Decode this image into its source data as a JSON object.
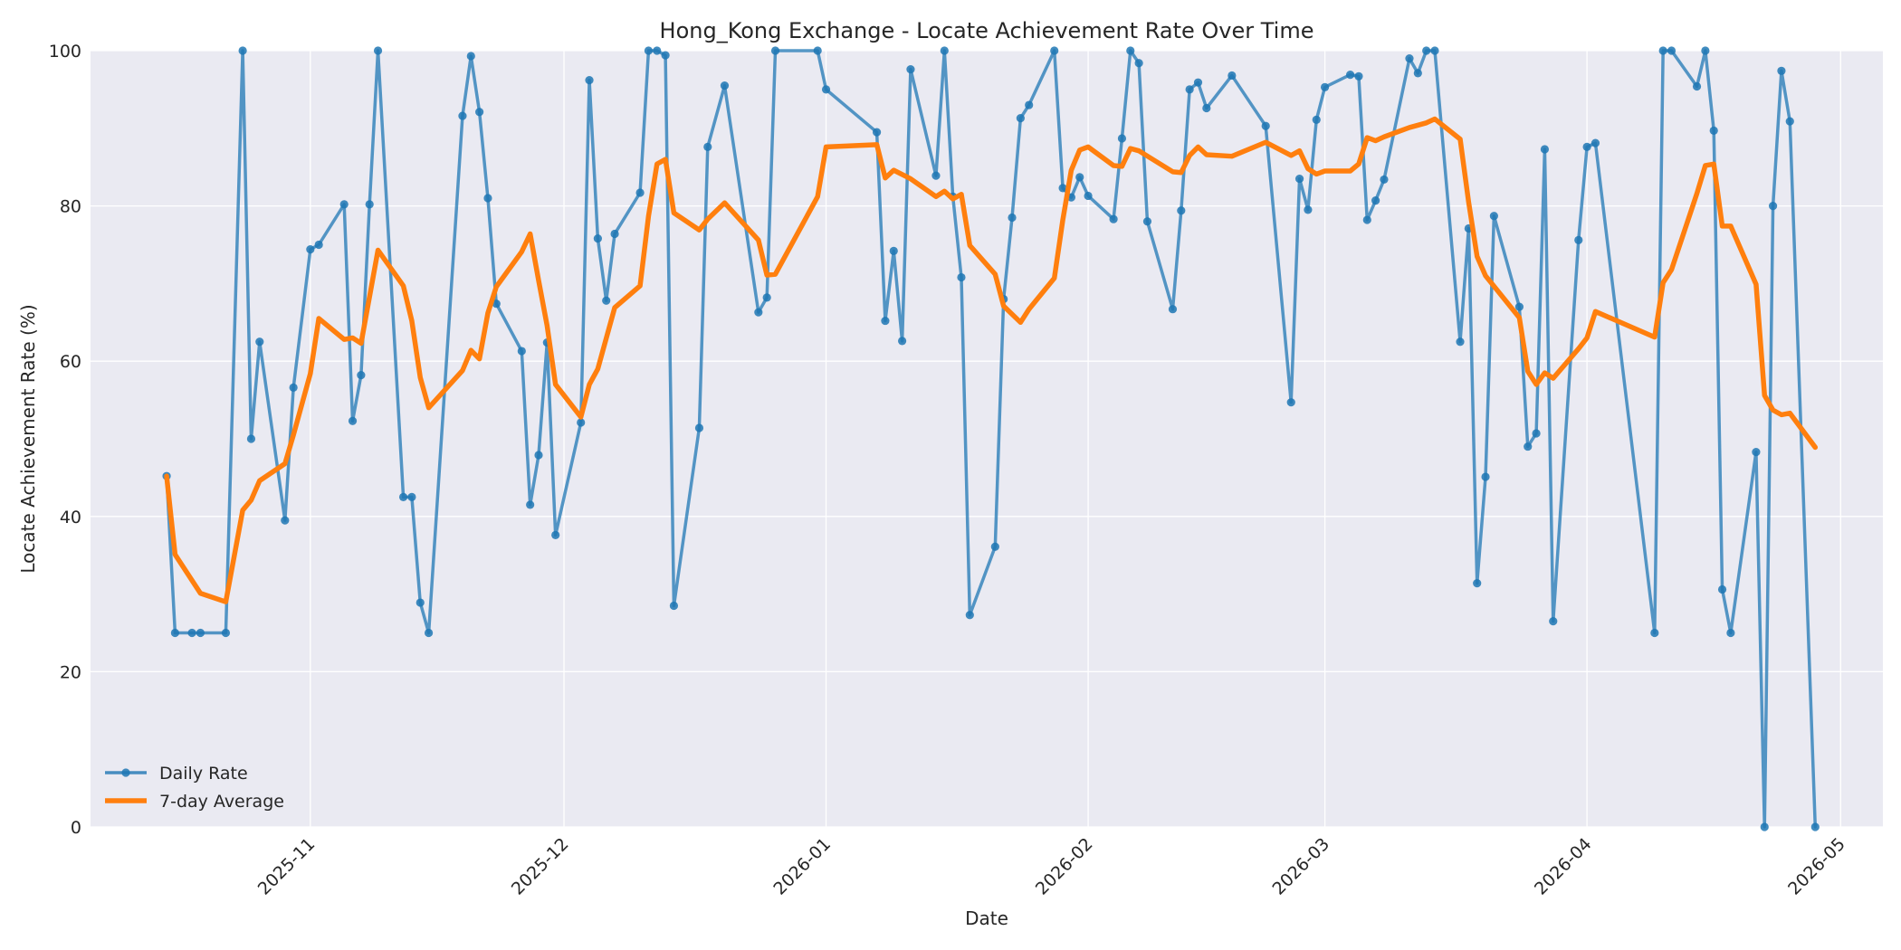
{
  "chart_data": {
    "type": "line",
    "title": "Hong_Kong Exchange - Locate Achievement Rate Over Time",
    "xlabel": "Date",
    "ylabel": "Locate Achievement Rate (%)",
    "ylim": [
      0,
      100
    ],
    "xlim": [
      "2025-10-06",
      "2026-05-06"
    ],
    "yticks": [
      0,
      20,
      40,
      60,
      80,
      100
    ],
    "xticks": [
      {
        "date": "2025-11-01",
        "label": "2025-11"
      },
      {
        "date": "2025-12-01",
        "label": "2025-12"
      },
      {
        "date": "2026-01-01",
        "label": "2026-01"
      },
      {
        "date": "2026-02-01",
        "label": "2026-02"
      },
      {
        "date": "2026-03-01",
        "label": "2026-03"
      },
      {
        "date": "2026-04-01",
        "label": "2026-04"
      },
      {
        "date": "2026-05-01",
        "label": "2026-05"
      }
    ],
    "grid": true,
    "legend_position": "lower-left",
    "colors": {
      "plot_bg": "#eaeaf2",
      "grid": "#ffffff",
      "daily": "#1f77b4",
      "avg": "#ff7f0e"
    },
    "series": [
      {
        "name": "Daily Rate",
        "marker": "circle",
        "points": [
          [
            "2025-10-15",
            45.2
          ],
          [
            "2025-10-16",
            25.0
          ],
          [
            "2025-10-18",
            25.0
          ],
          [
            "2025-10-19",
            25.0
          ],
          [
            "2025-10-22",
            25.0
          ],
          [
            "2025-10-24",
            100.0
          ],
          [
            "2025-10-25",
            50.0
          ],
          [
            "2025-10-26",
            62.5
          ],
          [
            "2025-10-29",
            39.5
          ],
          [
            "2025-10-30",
            56.6
          ],
          [
            "2025-11-01",
            74.4
          ],
          [
            "2025-11-02",
            75.0
          ],
          [
            "2025-11-05",
            80.2
          ],
          [
            "2025-11-06",
            52.3
          ],
          [
            "2025-11-07",
            58.2
          ],
          [
            "2025-11-08",
            80.2
          ],
          [
            "2025-11-09",
            100.0
          ],
          [
            "2025-11-12",
            42.5
          ],
          [
            "2025-11-13",
            42.5
          ],
          [
            "2025-11-14",
            28.9
          ],
          [
            "2025-11-15",
            25.0
          ],
          [
            "2025-11-19",
            91.6
          ],
          [
            "2025-11-20",
            99.3
          ],
          [
            "2025-11-21",
            92.1
          ],
          [
            "2025-11-22",
            81.0
          ],
          [
            "2025-11-23",
            67.4
          ],
          [
            "2025-11-26",
            61.3
          ],
          [
            "2025-11-27",
            41.5
          ],
          [
            "2025-11-28",
            47.9
          ],
          [
            "2025-11-29",
            62.4
          ],
          [
            "2025-11-30",
            37.6
          ],
          [
            "2025-12-03",
            52.1
          ],
          [
            "2025-12-04",
            96.2
          ],
          [
            "2025-12-05",
            75.8
          ],
          [
            "2025-12-06",
            67.8
          ],
          [
            "2025-12-07",
            76.4
          ],
          [
            "2025-12-10",
            81.7
          ],
          [
            "2025-12-11",
            100.0
          ],
          [
            "2025-12-12",
            100.0
          ],
          [
            "2025-12-13",
            99.4
          ],
          [
            "2025-12-14",
            28.5
          ],
          [
            "2025-12-17",
            51.4
          ],
          [
            "2025-12-18",
            87.6
          ],
          [
            "2025-12-20",
            95.5
          ],
          [
            "2025-12-24",
            66.3
          ],
          [
            "2025-12-25",
            68.2
          ],
          [
            "2025-12-26",
            100.0
          ],
          [
            "2025-12-31",
            100.0
          ],
          [
            "2026-01-01",
            95.0
          ],
          [
            "2026-01-07",
            89.5
          ],
          [
            "2026-01-08",
            65.2
          ],
          [
            "2026-01-09",
            74.2
          ],
          [
            "2026-01-10",
            62.6
          ],
          [
            "2026-01-11",
            97.6
          ],
          [
            "2026-01-14",
            83.9
          ],
          [
            "2026-01-15",
            100.0
          ],
          [
            "2026-01-16",
            81.2
          ],
          [
            "2026-01-17",
            70.8
          ],
          [
            "2026-01-18",
            27.3
          ],
          [
            "2026-01-21",
            36.1
          ],
          [
            "2026-01-22",
            68.0
          ],
          [
            "2026-01-23",
            78.5
          ],
          [
            "2026-01-24",
            91.3
          ],
          [
            "2026-01-25",
            93.0
          ],
          [
            "2026-01-28",
            100.0
          ],
          [
            "2026-01-29",
            82.3
          ],
          [
            "2026-01-30",
            81.1
          ],
          [
            "2026-01-31",
            83.7
          ],
          [
            "2026-02-01",
            81.3
          ],
          [
            "2026-02-04",
            78.3
          ],
          [
            "2026-02-05",
            88.7
          ],
          [
            "2026-02-06",
            100.0
          ],
          [
            "2026-02-07",
            98.4
          ],
          [
            "2026-02-08",
            78.0
          ],
          [
            "2026-02-11",
            66.7
          ],
          [
            "2026-02-12",
            79.4
          ],
          [
            "2026-02-13",
            95.0
          ],
          [
            "2026-02-14",
            95.9
          ],
          [
            "2026-02-15",
            92.6
          ],
          [
            "2026-02-18",
            96.8
          ],
          [
            "2026-02-22",
            90.3
          ],
          [
            "2026-02-25",
            54.7
          ],
          [
            "2026-02-26",
            83.5
          ],
          [
            "2026-02-27",
            79.5
          ],
          [
            "2026-02-28",
            91.1
          ],
          [
            "2026-03-01",
            95.3
          ],
          [
            "2026-03-04",
            96.9
          ],
          [
            "2026-03-05",
            96.7
          ],
          [
            "2026-03-06",
            78.2
          ],
          [
            "2026-03-07",
            80.7
          ],
          [
            "2026-03-08",
            83.4
          ],
          [
            "2026-03-11",
            99.0
          ],
          [
            "2026-03-12",
            97.1
          ],
          [
            "2026-03-13",
            100.0
          ],
          [
            "2026-03-14",
            100.0
          ],
          [
            "2026-03-17",
            62.5
          ],
          [
            "2026-03-18",
            77.1
          ],
          [
            "2026-03-19",
            31.4
          ],
          [
            "2026-03-20",
            45.1
          ],
          [
            "2026-03-21",
            78.7
          ],
          [
            "2026-03-24",
            67.0
          ],
          [
            "2026-03-25",
            49.0
          ],
          [
            "2026-03-26",
            50.7
          ],
          [
            "2026-03-27",
            87.3
          ],
          [
            "2026-03-28",
            26.5
          ],
          [
            "2026-03-31",
            75.6
          ],
          [
            "2026-04-01",
            87.6
          ],
          [
            "2026-04-02",
            88.1
          ],
          [
            "2026-04-09",
            25.0
          ],
          [
            "2026-04-10",
            100.0
          ],
          [
            "2026-04-11",
            100.0
          ],
          [
            "2026-04-14",
            95.4
          ],
          [
            "2026-04-15",
            100.0
          ],
          [
            "2026-04-16",
            89.7
          ],
          [
            "2026-04-17",
            30.6
          ],
          [
            "2026-04-18",
            25.0
          ],
          [
            "2026-04-21",
            48.3
          ],
          [
            "2026-04-22",
            0.0
          ],
          [
            "2026-04-23",
            80.0
          ],
          [
            "2026-04-24",
            97.4
          ],
          [
            "2026-04-25",
            90.9
          ],
          [
            "2026-04-28",
            0.0
          ]
        ]
      },
      {
        "name": "7-day Average",
        "marker": "none",
        "points": [
          [
            "2025-10-15",
            45.2
          ],
          [
            "2025-10-16",
            35.1
          ],
          [
            "2025-10-19",
            30.1
          ],
          [
            "2025-10-22",
            29.0
          ],
          [
            "2025-10-24",
            40.8
          ],
          [
            "2025-10-25",
            42.1
          ],
          [
            "2025-10-26",
            44.6
          ],
          [
            "2025-10-29",
            46.8
          ],
          [
            "2025-10-30",
            50.5
          ],
          [
            "2025-11-01",
            58.4
          ],
          [
            "2025-11-02",
            65.5
          ],
          [
            "2025-11-05",
            62.8
          ],
          [
            "2025-11-06",
            63.0
          ],
          [
            "2025-11-07",
            62.3
          ],
          [
            "2025-11-09",
            74.3
          ],
          [
            "2025-11-12",
            69.7
          ],
          [
            "2025-11-13",
            65.2
          ],
          [
            "2025-11-14",
            57.9
          ],
          [
            "2025-11-15",
            54.0
          ],
          [
            "2025-11-19",
            58.8
          ],
          [
            "2025-11-20",
            61.4
          ],
          [
            "2025-11-21",
            60.3
          ],
          [
            "2025-11-22",
            66.2
          ],
          [
            "2025-11-23",
            69.6
          ],
          [
            "2025-11-26",
            74.1
          ],
          [
            "2025-11-27",
            76.4
          ],
          [
            "2025-11-28",
            70.4
          ],
          [
            "2025-11-29",
            64.6
          ],
          [
            "2025-11-30",
            57.0
          ],
          [
            "2025-12-03",
            52.8
          ],
          [
            "2025-12-04",
            57.0
          ],
          [
            "2025-12-05",
            59.0
          ],
          [
            "2025-12-07",
            66.9
          ],
          [
            "2025-12-10",
            69.7
          ],
          [
            "2025-12-11",
            78.7
          ],
          [
            "2025-12-12",
            85.4
          ],
          [
            "2025-12-13",
            86.0
          ],
          [
            "2025-12-14",
            79.1
          ],
          [
            "2025-12-17",
            76.9
          ],
          [
            "2025-12-18",
            78.3
          ],
          [
            "2025-12-20",
            80.4
          ],
          [
            "2025-12-24",
            75.6
          ],
          [
            "2025-12-25",
            71.1
          ],
          [
            "2025-12-26",
            71.2
          ],
          [
            "2025-12-31",
            81.2
          ],
          [
            "2026-01-01",
            87.6
          ],
          [
            "2026-01-07",
            87.9
          ],
          [
            "2026-01-08",
            83.6
          ],
          [
            "2026-01-09",
            84.6
          ],
          [
            "2026-01-11",
            83.5
          ],
          [
            "2026-01-14",
            81.2
          ],
          [
            "2026-01-15",
            81.9
          ],
          [
            "2026-01-16",
            80.9
          ],
          [
            "2026-01-17",
            81.5
          ],
          [
            "2026-01-18",
            74.9
          ],
          [
            "2026-01-21",
            71.2
          ],
          [
            "2026-01-22",
            67.1
          ],
          [
            "2026-01-24",
            65.0
          ],
          [
            "2026-01-25",
            66.7
          ],
          [
            "2026-01-28",
            70.7
          ],
          [
            "2026-01-29",
            78.2
          ],
          [
            "2026-01-30",
            84.6
          ],
          [
            "2026-01-31",
            87.2
          ],
          [
            "2026-02-01",
            87.6
          ],
          [
            "2026-02-04",
            85.2
          ],
          [
            "2026-02-05",
            85.1
          ],
          [
            "2026-02-06",
            87.4
          ],
          [
            "2026-02-07",
            87.1
          ],
          [
            "2026-02-11",
            84.4
          ],
          [
            "2026-02-12",
            84.3
          ],
          [
            "2026-02-13",
            86.5
          ],
          [
            "2026-02-14",
            87.6
          ],
          [
            "2026-02-15",
            86.6
          ],
          [
            "2026-02-18",
            86.4
          ],
          [
            "2026-02-22",
            88.2
          ],
          [
            "2026-02-25",
            86.5
          ],
          [
            "2026-02-26",
            87.1
          ],
          [
            "2026-02-27",
            84.8
          ],
          [
            "2026-02-28",
            84.1
          ],
          [
            "2026-03-01",
            84.5
          ],
          [
            "2026-03-04",
            84.5
          ],
          [
            "2026-03-05",
            85.4
          ],
          [
            "2026-03-06",
            88.8
          ],
          [
            "2026-03-07",
            88.4
          ],
          [
            "2026-03-08",
            88.9
          ],
          [
            "2026-03-11",
            90.1
          ],
          [
            "2026-03-13",
            90.7
          ],
          [
            "2026-03-14",
            91.2
          ],
          [
            "2026-03-17",
            88.6
          ],
          [
            "2026-03-18",
            80.5
          ],
          [
            "2026-03-19",
            73.5
          ],
          [
            "2026-03-20",
            71.0
          ],
          [
            "2026-03-24",
            65.6
          ],
          [
            "2026-03-25",
            58.7
          ],
          [
            "2026-03-26",
            57.0
          ],
          [
            "2026-03-27",
            58.5
          ],
          [
            "2026-03-28",
            57.8
          ],
          [
            "2026-03-31",
            61.6
          ],
          [
            "2026-04-01",
            63.0
          ],
          [
            "2026-04-02",
            66.4
          ],
          [
            "2026-04-09",
            63.1
          ],
          [
            "2026-04-10",
            70.1
          ],
          [
            "2026-04-11",
            71.8
          ],
          [
            "2026-04-14",
            81.6
          ],
          [
            "2026-04-15",
            85.2
          ],
          [
            "2026-04-16",
            85.4
          ],
          [
            "2026-04-17",
            77.4
          ],
          [
            "2026-04-18",
            77.4
          ],
          [
            "2026-04-21",
            69.9
          ],
          [
            "2026-04-22",
            55.6
          ],
          [
            "2026-04-23",
            53.7
          ],
          [
            "2026-04-24",
            53.1
          ],
          [
            "2026-04-25",
            53.3
          ],
          [
            "2026-04-28",
            48.9
          ]
        ]
      }
    ]
  }
}
